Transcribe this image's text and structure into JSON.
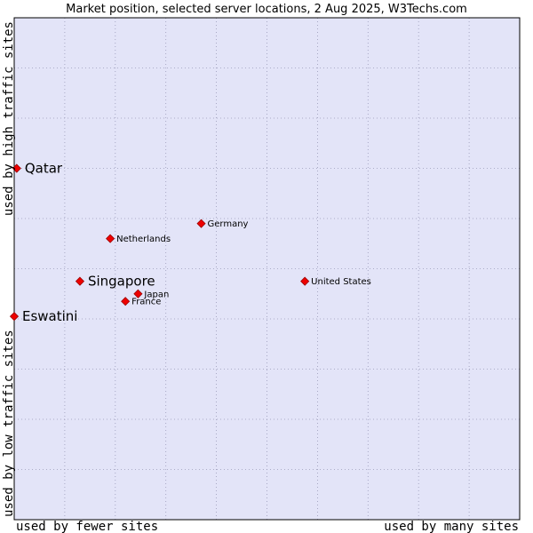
{
  "chart_data": {
    "type": "scatter",
    "title": "Market position, selected server locations, 2 Aug 2025, W3Techs.com",
    "xlabel_left": "used by fewer sites",
    "xlabel_right": "used by many sites",
    "ylabel_top": "used by high traffic sites",
    "ylabel_bottom": "used by low traffic sites",
    "xlim": [
      0,
      10
    ],
    "ylim": [
      0,
      10
    ],
    "grid": true,
    "colors": {
      "background": "#e3e4f8",
      "grid": "#9a9ab8",
      "point_fill": "#ee0000",
      "point_stroke": "#990000",
      "frame": "#000000"
    },
    "points": [
      {
        "name": "Qatar",
        "x": 0.05,
        "y": 7.0,
        "size": "large"
      },
      {
        "name": "Germany",
        "x": 3.7,
        "y": 5.9,
        "size": "small"
      },
      {
        "name": "Netherlands",
        "x": 1.9,
        "y": 5.6,
        "size": "small"
      },
      {
        "name": "Singapore",
        "x": 1.3,
        "y": 4.75,
        "size": "large"
      },
      {
        "name": "United States",
        "x": 5.75,
        "y": 4.75,
        "size": "small"
      },
      {
        "name": "Japan",
        "x": 2.45,
        "y": 4.5,
        "size": "small"
      },
      {
        "name": "France",
        "x": 2.2,
        "y": 4.35,
        "size": "small"
      },
      {
        "name": "Eswatini",
        "x": 0.0,
        "y": 4.05,
        "size": "large"
      }
    ]
  }
}
